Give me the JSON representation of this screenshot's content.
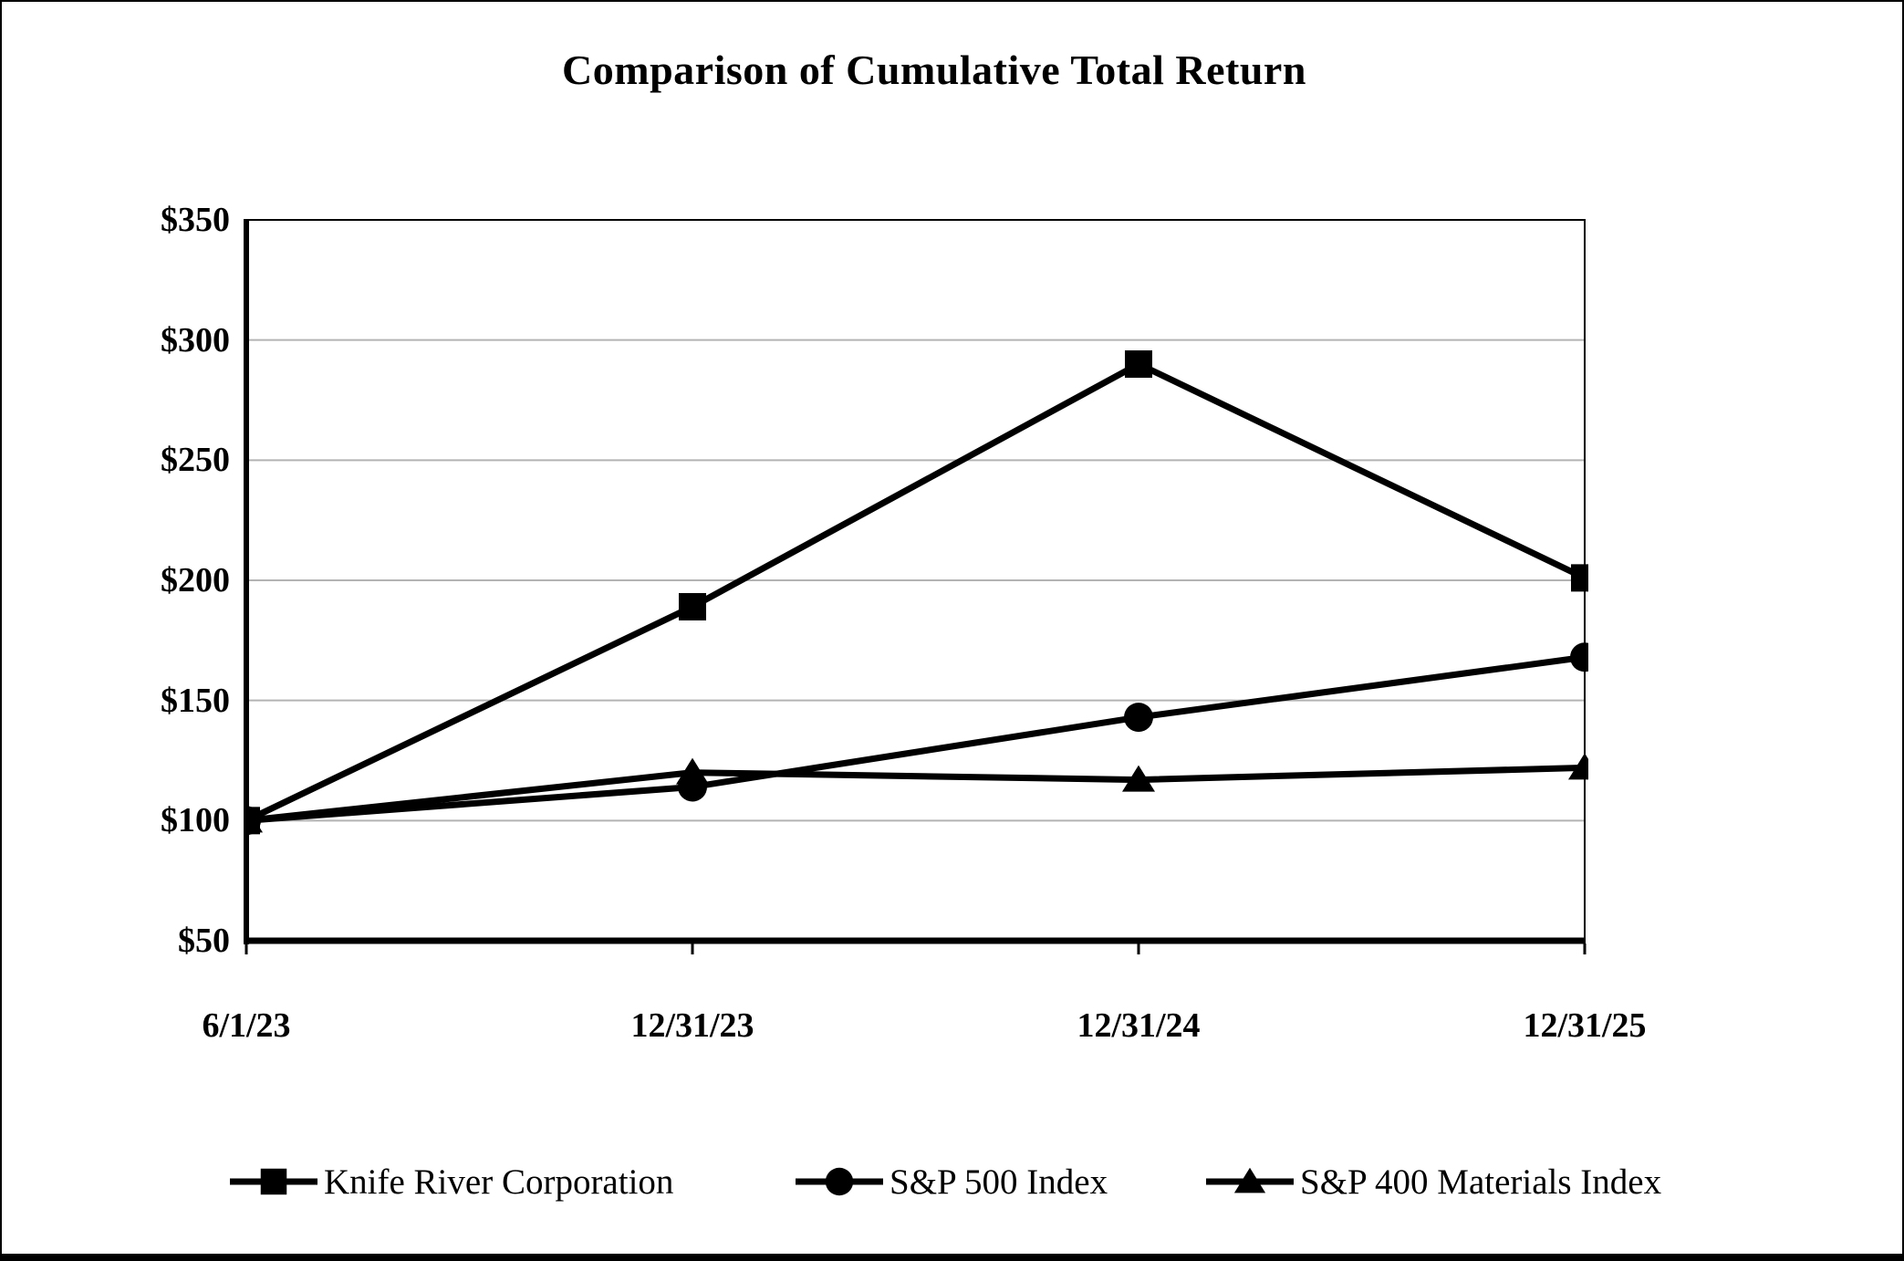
{
  "page": {
    "background": "#ffffff",
    "border_color": "#000000"
  },
  "chart_data": {
    "type": "line",
    "title": "Comparison of Cumulative Total Return",
    "categories": [
      "6/1/23",
      "12/31/23",
      "12/31/24",
      "12/31/25"
    ],
    "series": [
      {
        "name": "Knife River Corporation",
        "marker": "square",
        "values": [
          100,
          189,
          290,
          201
        ]
      },
      {
        "name": "S&P 500 Index",
        "marker": "circle",
        "values": [
          100,
          114,
          143,
          168
        ]
      },
      {
        "name": "S&P 400 Materials Index",
        "marker": "triangle",
        "values": [
          100,
          120,
          117,
          122
        ]
      }
    ],
    "ylim": [
      50,
      350
    ],
    "y_ticks": [
      {
        "label": "$350",
        "value": 350
      },
      {
        "label": "$300",
        "value": 300
      },
      {
        "label": "$250",
        "value": 250
      },
      {
        "label": "$200",
        "value": 200
      },
      {
        "label": "$150",
        "value": 150
      },
      {
        "label": "$100",
        "value": 100
      },
      {
        "label": "$50",
        "value": 50
      }
    ],
    "grid_values": [
      300,
      250,
      200,
      150,
      100
    ],
    "grid": true,
    "legend_position": "bottom",
    "series_color": "#000000",
    "grid_color": "#b3b3b3",
    "axis_color": "#000000"
  }
}
